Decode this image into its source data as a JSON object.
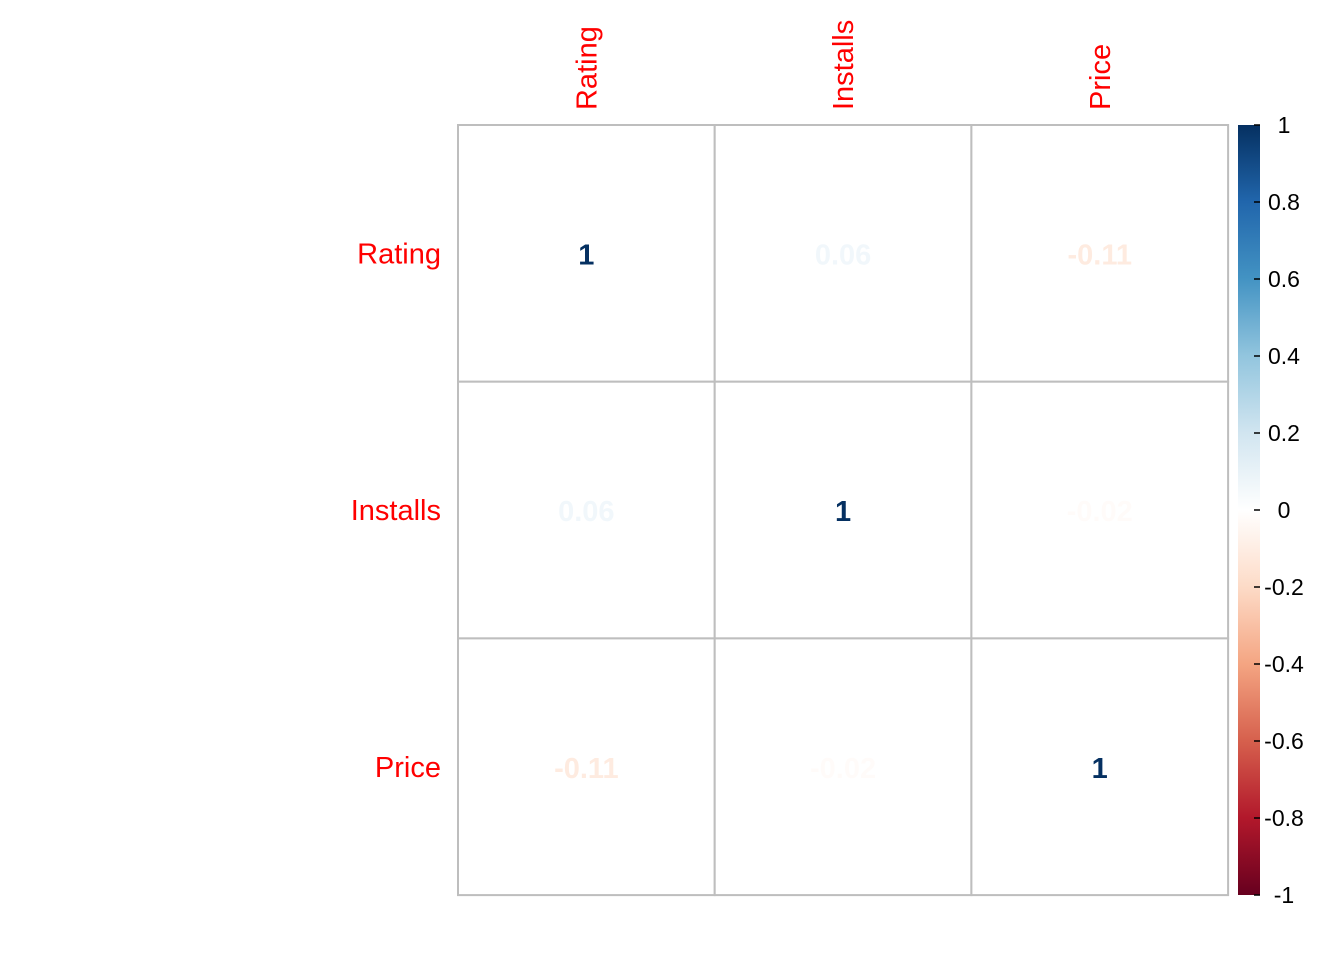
{
  "chart_data": {
    "type": "heatmap",
    "variables": [
      "Rating",
      "Installs",
      "Price"
    ],
    "matrix": [
      [
        1,
        0.06,
        -0.11
      ],
      [
        0.06,
        1,
        -0.02
      ],
      [
        -0.11,
        -0.02,
        1
      ]
    ],
    "cell_labels": [
      [
        "1",
        "0.06",
        "-0.11"
      ],
      [
        "0.06",
        "1",
        "-0.02"
      ],
      [
        "-0.11",
        "-0.02",
        "1"
      ]
    ],
    "colorbar": {
      "range": [
        -1,
        1
      ],
      "ticks": [
        1,
        0.8,
        0.6,
        0.4,
        0.2,
        0,
        -0.2,
        -0.4,
        -0.6,
        -0.8,
        -1
      ],
      "tick_labels": [
        "1",
        "0.8",
        "0.6",
        "0.4",
        "0.2",
        "0",
        "-0.2",
        "-0.4",
        "-0.6",
        "-0.8",
        "-1"
      ],
      "colors": [
        "#67001F",
        "#B2182B",
        "#D6604D",
        "#F4A582",
        "#FDDBC7",
        "#FFFFFF",
        "#D1E5F0",
        "#92C5DE",
        "#4393C3",
        "#2166AC",
        "#053061"
      ]
    },
    "label_color": "#FF0000",
    "grid_color": "#BEBEBE"
  }
}
